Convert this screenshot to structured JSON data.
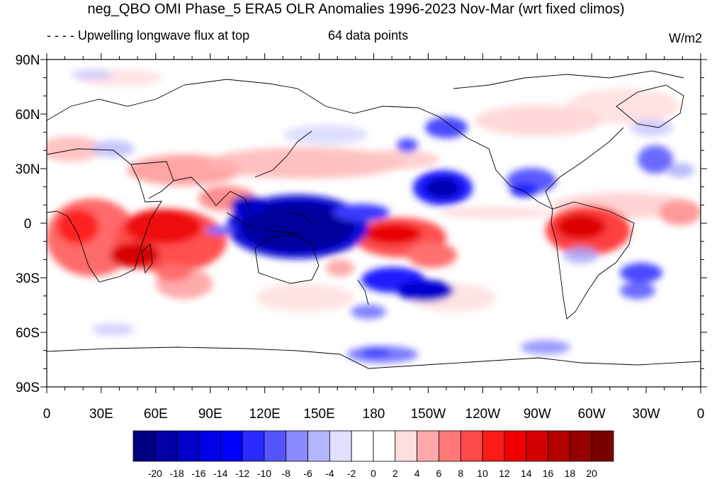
{
  "title": "neg_QBO OMI Phase_5 ERA5 OLR Anomalies 1996-2023 Nov-Mar (wrt fixed climos)",
  "subtitle_left": "- - - - Upwelling longwave flux at top",
  "subtitle_center": "64 data points",
  "units": "W/m2",
  "lat_labels": [
    "90N",
    "60N",
    "30N",
    "0",
    "30S",
    "60S",
    "90S"
  ],
  "lon_labels": [
    "0",
    "30E",
    "60E",
    "90E",
    "120E",
    "150E",
    "180",
    "150W",
    "120W",
    "90W",
    "60W",
    "30W",
    "0"
  ],
  "colorbar": {
    "labels": [
      "-20",
      "-18",
      "-16",
      "-14",
      "-12",
      "-10",
      "-8",
      "-6",
      "-4",
      "-2",
      "0",
      "2",
      "4",
      "6",
      "8",
      "10",
      "12",
      "14",
      "16",
      "18",
      "20"
    ],
    "colors": [
      "#000080",
      "#0000a4",
      "#0000c8",
      "#0000e6",
      "#0000ff",
      "#2a2aff",
      "#5555ff",
      "#8a8aff",
      "#b5b5ff",
      "#e0e0ff",
      "#ffffff",
      "#ffffff",
      "#ffdede",
      "#ffaaaa",
      "#ff7878",
      "#ff4848",
      "#ff1a1a",
      "#f00000",
      "#d40000",
      "#b40000",
      "#960000",
      "#7a0000"
    ]
  }
}
